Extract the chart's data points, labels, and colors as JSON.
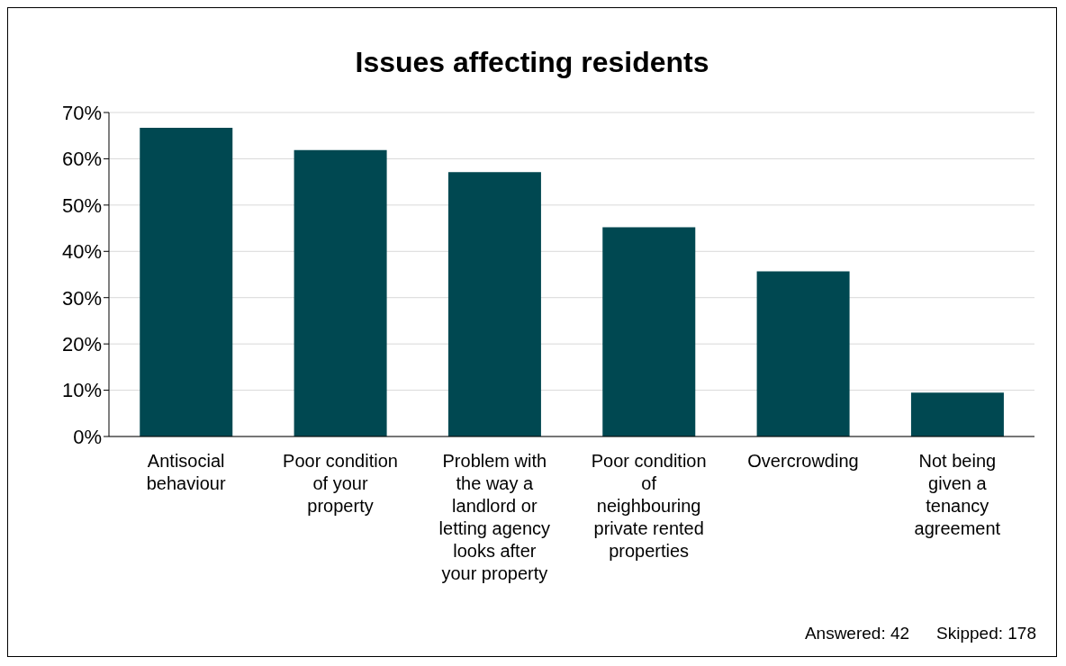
{
  "chart_data": {
    "type": "bar",
    "title": "Issues affecting residents",
    "categories": [
      "Antisocial behaviour",
      "Poor condition of your property",
      "Problem with the way a landlord or letting agency looks after your property",
      "Poor condition of neighbouring private rented properties",
      "Overcrowding",
      "Not being given a tenancy agreement"
    ],
    "values": [
      66.7,
      61.9,
      57.1,
      45.2,
      35.7,
      9.5
    ],
    "color": "#004851",
    "ylim": [
      0,
      70
    ],
    "yticks": [
      {
        "value": 0,
        "label": "0%"
      },
      {
        "value": 10,
        "label": "10%"
      },
      {
        "value": 20,
        "label": "20%"
      },
      {
        "value": 30,
        "label": "30%"
      },
      {
        "value": 40,
        "label": "40%"
      },
      {
        "value": 50,
        "label": "50%"
      },
      {
        "value": 60,
        "label": "60%"
      },
      {
        "value": 70,
        "label": "70%"
      }
    ],
    "grid": "y",
    "annotations": [
      "Answered: 42",
      "Skipped: 178"
    ]
  }
}
